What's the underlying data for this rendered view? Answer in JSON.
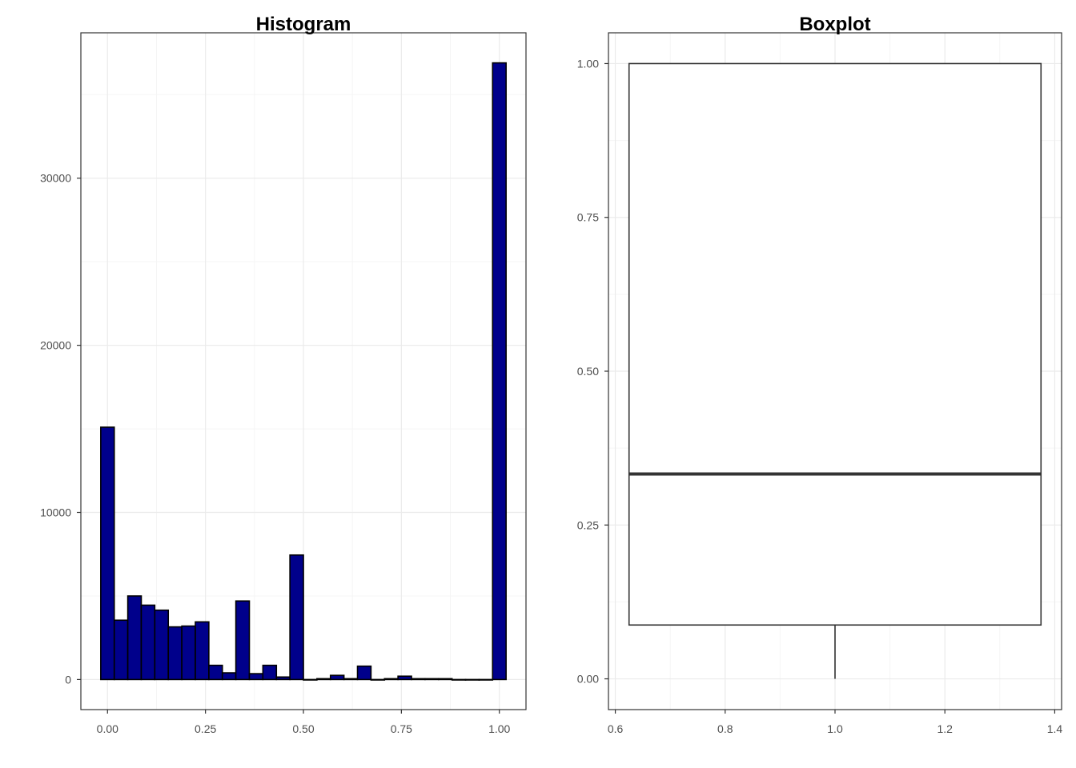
{
  "colors": {
    "bar_fill": "#00008b",
    "bar_stroke": "#000000",
    "grid_major": "#ebebeb",
    "grid_minor": "#f5f5f5",
    "panel_border": "#333333",
    "box_stroke": "#333333"
  },
  "chart_data": [
    {
      "type": "bar",
      "chart_kind": "histogram",
      "title": "Histogram",
      "xlabel": "",
      "ylabel": "",
      "bin_width": 0.0345,
      "bins_center": [
        0.0,
        0.0345,
        0.069,
        0.1034,
        0.1379,
        0.1724,
        0.2069,
        0.2414,
        0.2759,
        0.3103,
        0.3448,
        0.3793,
        0.4138,
        0.4483,
        0.4828,
        0.5172,
        0.5517,
        0.5862,
        0.6207,
        0.6552,
        0.6897,
        0.7241,
        0.7586,
        0.7931,
        0.8276,
        0.8621,
        0.8966,
        0.931,
        0.9655,
        1.0
      ],
      "values": [
        15100,
        3550,
        5000,
        4450,
        4150,
        3150,
        3200,
        3450,
        850,
        400,
        4700,
        350,
        850,
        150,
        7450,
        0,
        50,
        250,
        50,
        800,
        0,
        50,
        200,
        50,
        50,
        50,
        0,
        0,
        0,
        36900
      ],
      "xlim": [
        -0.068,
        1.068
      ],
      "ylim": [
        -1800,
        38700
      ],
      "x_ticks": [
        0.0,
        0.25,
        0.5,
        0.75,
        1.0
      ],
      "x_tick_labels": [
        "0.00",
        "0.25",
        "0.50",
        "0.75",
        "1.00"
      ],
      "y_ticks": [
        0,
        10000,
        20000,
        30000
      ],
      "y_tick_labels": [
        "0",
        "10000",
        "20000",
        "30000"
      ],
      "grid": true
    },
    {
      "type": "boxplot",
      "title": "Boxplot",
      "xlabel": "",
      "ylabel": "",
      "x_center": 1.0,
      "box_width": 0.75,
      "min": 0.0,
      "q1": 0.0875,
      "median": 0.333,
      "q3": 1.0,
      "max": 1.0,
      "xlim": [
        0.5875,
        1.4125
      ],
      "ylim": [
        -0.05,
        1.05
      ],
      "x_ticks": [
        0.6,
        0.8,
        1.0,
        1.2,
        1.4
      ],
      "x_tick_labels": [
        "0.6",
        "0.8",
        "1.0",
        "1.2",
        "1.4"
      ],
      "y_ticks": [
        0.0,
        0.25,
        0.5,
        0.75,
        1.0
      ],
      "y_tick_labels": [
        "0.00",
        "0.25",
        "0.50",
        "0.75",
        "1.00"
      ],
      "grid": true
    }
  ]
}
